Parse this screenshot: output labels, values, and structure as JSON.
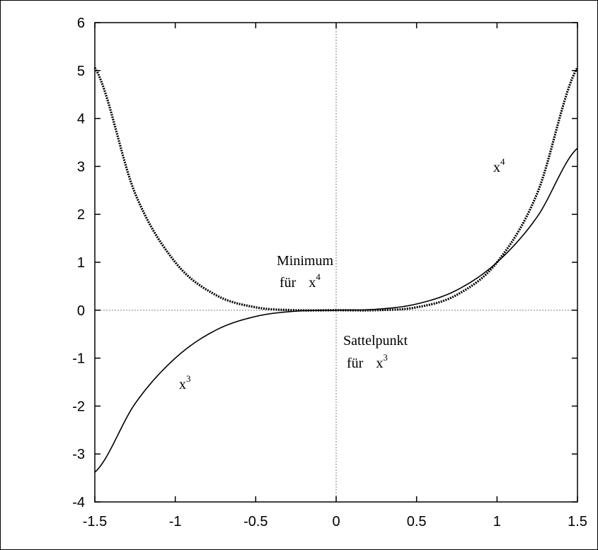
{
  "chart_data": {
    "type": "line",
    "title": "",
    "xlabel": "",
    "ylabel": "",
    "xlim": [
      -1.5,
      1.5
    ],
    "ylim": [
      -4,
      6
    ],
    "x_ticks": [
      "-1.5",
      "-1",
      "-0.5",
      "0",
      "0.5",
      "1",
      "1.5"
    ],
    "y_ticks": [
      "6",
      "5",
      "4",
      "3",
      "2",
      "1",
      "0",
      "-1",
      "-2",
      "-3",
      "-4"
    ],
    "grid": false,
    "zero_lines": true,
    "series": [
      {
        "style": "dotted-thick",
        "color": "#000000",
        "x": [
          -1.5,
          -1.25,
          -1.0,
          -0.75,
          -0.5,
          -0.25,
          0,
          0.25,
          0.5,
          0.75,
          1.0,
          1.25,
          1.5
        ],
        "y": [
          5.06,
          2.44,
          1.0,
          0.32,
          0.06,
          0.0,
          0,
          0.0,
          0.06,
          0.32,
          1.0,
          2.44,
          5.06
        ]
      },
      {
        "style": "solid",
        "color": "#000000",
        "x": [
          -1.5,
          -1.25,
          -1.0,
          -0.75,
          -0.5,
          -0.25,
          0,
          0.25,
          0.5,
          0.75,
          1.0,
          1.25,
          1.5
        ],
        "y": [
          -3.38,
          -1.95,
          -1.0,
          -0.42,
          -0.13,
          -0.02,
          0,
          0.02,
          0.13,
          0.42,
          1.0,
          1.95,
          3.38
        ]
      }
    ],
    "annotations": {
      "x4_label": {
        "base": "x",
        "sup": "4"
      },
      "minimum_line1": "Minimum",
      "minimum_line2": {
        "prefix": "für",
        "base": "x",
        "sup": "4"
      },
      "sattel_line1": "Sattelpunkt",
      "sattel_line2": {
        "prefix": "für",
        "base": "x",
        "sup": "3"
      },
      "x3_label": {
        "base": "x",
        "sup": "3"
      }
    }
  }
}
